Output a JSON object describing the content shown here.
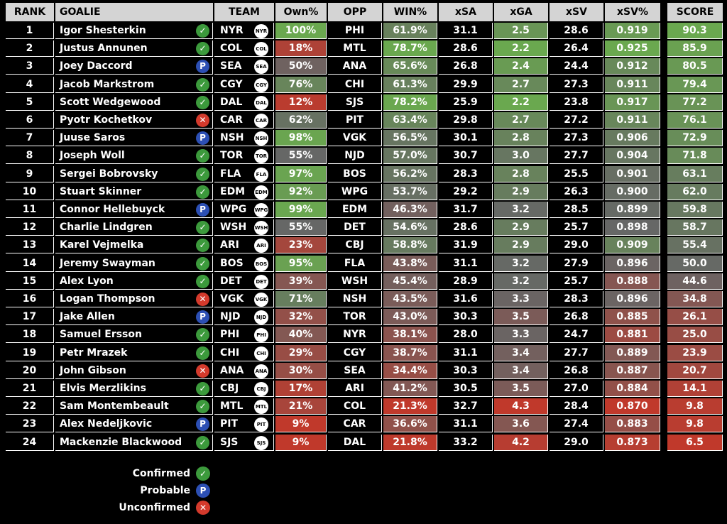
{
  "headers": {
    "rank": "RANK",
    "goalie": "GOALIE",
    "team": "TEAM",
    "own": "Own%",
    "opp": "OPP",
    "win": "WIN%",
    "xsa": "xSA",
    "xga": "xGA",
    "xsv": "xSV",
    "xsvp": "xSV%",
    "score": "SCORE"
  },
  "status_symbols": {
    "confirmed": "✓",
    "probable": "P",
    "unconfirmed": "✕"
  },
  "rows": [
    {
      "rank": "1",
      "name": "Igor Shesterkin",
      "status": "confirmed",
      "team": "NYR",
      "own": "100%",
      "opp": "PHI",
      "win": "61.9%",
      "xsa": "31.1",
      "xga": "2.5",
      "xsv": "28.6",
      "xsvp": "0.919",
      "score": "90.3"
    },
    {
      "rank": "2",
      "name": "Justus Annunen",
      "status": "confirmed",
      "team": "COL",
      "own": "18%",
      "opp": "MTL",
      "win": "78.7%",
      "xsa": "28.6",
      "xga": "2.2",
      "xsv": "26.4",
      "xsvp": "0.925",
      "score": "85.9"
    },
    {
      "rank": "3",
      "name": "Joey Daccord",
      "status": "probable",
      "team": "SEA",
      "own": "50%",
      "opp": "ANA",
      "win": "65.6%",
      "xsa": "26.8",
      "xga": "2.4",
      "xsv": "24.4",
      "xsvp": "0.912",
      "score": "80.5"
    },
    {
      "rank": "4",
      "name": "Jacob Markstrom",
      "status": "confirmed",
      "team": "CGY",
      "own": "76%",
      "opp": "CHI",
      "win": "61.3%",
      "xsa": "29.9",
      "xga": "2.7",
      "xsv": "27.3",
      "xsvp": "0.911",
      "score": "79.4"
    },
    {
      "rank": "5",
      "name": "Scott Wedgewood",
      "status": "confirmed",
      "team": "DAL",
      "own": "12%",
      "opp": "SJS",
      "win": "78.2%",
      "xsa": "25.9",
      "xga": "2.2",
      "xsv": "23.8",
      "xsvp": "0.917",
      "score": "77.2"
    },
    {
      "rank": "6",
      "name": "Pyotr Kochetkov",
      "status": "unconfirmed",
      "team": "CAR",
      "own": "62%",
      "opp": "PIT",
      "win": "63.4%",
      "xsa": "29.8",
      "xga": "2.7",
      "xsv": "27.2",
      "xsvp": "0.911",
      "score": "76.1"
    },
    {
      "rank": "7",
      "name": "Juuse Saros",
      "status": "probable",
      "team": "NSH",
      "own": "98%",
      "opp": "VGK",
      "win": "56.5%",
      "xsa": "30.1",
      "xga": "2.8",
      "xsv": "27.3",
      "xsvp": "0.906",
      "score": "72.9"
    },
    {
      "rank": "8",
      "name": "Joseph Woll",
      "status": "confirmed",
      "team": "TOR",
      "own": "55%",
      "opp": "NJD",
      "win": "57.0%",
      "xsa": "30.7",
      "xga": "3.0",
      "xsv": "27.7",
      "xsvp": "0.904",
      "score": "71.8"
    },
    {
      "rank": "9",
      "name": "Sergei Bobrovsky",
      "status": "confirmed",
      "team": "FLA",
      "own": "97%",
      "opp": "BOS",
      "win": "56.2%",
      "xsa": "28.3",
      "xga": "2.8",
      "xsv": "25.5",
      "xsvp": "0.901",
      "score": "63.1"
    },
    {
      "rank": "10",
      "name": "Stuart Skinner",
      "status": "confirmed",
      "team": "EDM",
      "own": "92%",
      "opp": "WPG",
      "win": "53.7%",
      "xsa": "29.2",
      "xga": "2.9",
      "xsv": "26.3",
      "xsvp": "0.900",
      "score": "62.0"
    },
    {
      "rank": "11",
      "name": "Connor Hellebuyck",
      "status": "probable",
      "team": "WPG",
      "own": "99%",
      "opp": "EDM",
      "win": "46.3%",
      "xsa": "31.7",
      "xga": "3.2",
      "xsv": "28.5",
      "xsvp": "0.899",
      "score": "59.8"
    },
    {
      "rank": "12",
      "name": "Charlie Lindgren",
      "status": "confirmed",
      "team": "WSH",
      "own": "55%",
      "opp": "DET",
      "win": "54.6%",
      "xsa": "28.6",
      "xga": "2.9",
      "xsv": "25.7",
      "xsvp": "0.898",
      "score": "58.7"
    },
    {
      "rank": "13",
      "name": "Karel Vejmelka",
      "status": "confirmed",
      "team": "ARI",
      "own": "23%",
      "opp": "CBJ",
      "win": "58.8%",
      "xsa": "31.9",
      "xga": "2.9",
      "xsv": "29.0",
      "xsvp": "0.909",
      "score": "55.4"
    },
    {
      "rank": "14",
      "name": "Jeremy Swayman",
      "status": "confirmed",
      "team": "BOS",
      "own": "95%",
      "opp": "FLA",
      "win": "43.8%",
      "xsa": "31.1",
      "xga": "3.2",
      "xsv": "27.9",
      "xsvp": "0.896",
      "score": "50.0"
    },
    {
      "rank": "15",
      "name": "Alex Lyon",
      "status": "confirmed",
      "team": "DET",
      "own": "39%",
      "opp": "WSH",
      "win": "45.4%",
      "xsa": "28.9",
      "xga": "3.2",
      "xsv": "25.7",
      "xsvp": "0.888",
      "score": "44.6"
    },
    {
      "rank": "16",
      "name": "Logan Thompson",
      "status": "unconfirmed",
      "team": "VGK",
      "own": "71%",
      "opp": "NSH",
      "win": "43.5%",
      "xsa": "31.6",
      "xga": "3.3",
      "xsv": "28.3",
      "xsvp": "0.896",
      "score": "34.8"
    },
    {
      "rank": "17",
      "name": "Jake Allen",
      "status": "probable",
      "team": "NJD",
      "own": "32%",
      "opp": "TOR",
      "win": "43.0%",
      "xsa": "30.3",
      "xga": "3.5",
      "xsv": "26.8",
      "xsvp": "0.885",
      "score": "26.1"
    },
    {
      "rank": "18",
      "name": "Samuel Ersson",
      "status": "confirmed",
      "team": "PHI",
      "own": "40%",
      "opp": "NYR",
      "win": "38.1%",
      "xsa": "28.0",
      "xga": "3.3",
      "xsv": "24.7",
      "xsvp": "0.881",
      "score": "25.0"
    },
    {
      "rank": "19",
      "name": "Petr Mrazek",
      "status": "confirmed",
      "team": "CHI",
      "own": "29%",
      "opp": "CGY",
      "win": "38.7%",
      "xsa": "31.1",
      "xga": "3.4",
      "xsv": "27.7",
      "xsvp": "0.889",
      "score": "23.9"
    },
    {
      "rank": "20",
      "name": "John Gibson",
      "status": "unconfirmed",
      "team": "ANA",
      "own": "30%",
      "opp": "SEA",
      "win": "34.4%",
      "xsa": "30.3",
      "xga": "3.4",
      "xsv": "26.8",
      "xsvp": "0.887",
      "score": "20.7"
    },
    {
      "rank": "21",
      "name": "Elvis Merzlikins",
      "status": "confirmed",
      "team": "CBJ",
      "own": "17%",
      "opp": "ARI",
      "win": "41.2%",
      "xsa": "30.5",
      "xga": "3.5",
      "xsv": "27.0",
      "xsvp": "0.884",
      "score": "14.1"
    },
    {
      "rank": "22",
      "name": "Sam Montembeault",
      "status": "confirmed",
      "team": "MTL",
      "own": "21%",
      "opp": "COL",
      "win": "21.3%",
      "xsa": "32.7",
      "xga": "4.3",
      "xsv": "28.4",
      "xsvp": "0.870",
      "score": "9.8"
    },
    {
      "rank": "23",
      "name": "Alex Nedeljkovic",
      "status": "probable",
      "team": "PIT",
      "own": "9%",
      "opp": "CAR",
      "win": "36.6%",
      "xsa": "31.1",
      "xga": "3.6",
      "xsv": "27.4",
      "xsvp": "0.883",
      "score": "9.8"
    },
    {
      "rank": "24",
      "name": "Mackenzie Blackwood",
      "status": "confirmed",
      "team": "SJS",
      "own": "9%",
      "opp": "DAL",
      "win": "21.8%",
      "xsa": "33.2",
      "xga": "4.2",
      "xsv": "29.0",
      "xsvp": "0.873",
      "score": "6.5"
    }
  ],
  "legend": {
    "confirmed": "Confirmed",
    "probable": "Probable",
    "unconfirmed": "Unconfirmed"
  },
  "colors": {
    "good": "#6aa84f",
    "mid": "#666666",
    "bad": "#c0392b",
    "header_bg": "#d4d4d4",
    "status_confirmed": "#3c9a3c",
    "status_probable": "#2c4fb4",
    "status_unconfirmed": "#d43a2c"
  }
}
